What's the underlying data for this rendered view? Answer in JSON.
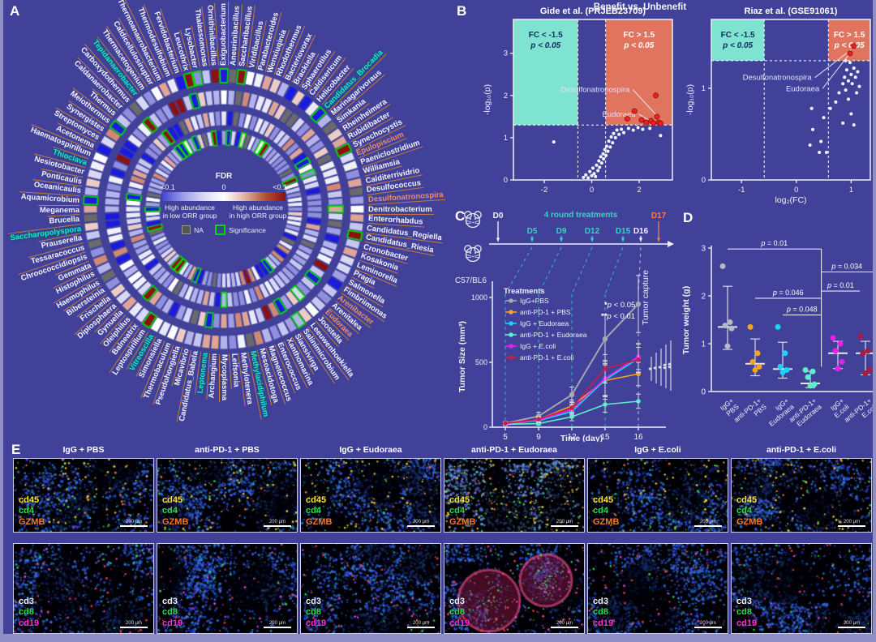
{
  "panels": {
    "a": "A",
    "b": "B",
    "c": "C",
    "d": "D",
    "e": "E"
  },
  "panelA": {
    "legend": {
      "title": "FDR",
      "tick_left": "<0.1",
      "tick_mid": "0",
      "tick_right": "<0.1",
      "left1": "High abundance",
      "left2": "in low ORR group",
      "right1": "High abundance",
      "right2": "in high ORR group",
      "na": "NA",
      "sig": "Significance"
    },
    "colors": {
      "highlight_cyan": "#1fe3ea",
      "highlight_orange": "#ef8d66",
      "leader": "#c47a3c",
      "sig_border": "#00dc00",
      "na_cell": "#6a6a6a"
    },
    "taxa": [
      [
        "Caldanaerobacter",
        ""
      ],
      [
        "Carboxydothermus",
        ""
      ],
      [
        "Tepidanaerobacter",
        "c"
      ],
      [
        "Thermacetogenium",
        ""
      ],
      [
        "Caldicellulosiruptor",
        ""
      ],
      [
        "Thermoanaerobacterium",
        ""
      ],
      [
        "Thermodesulfobium",
        ""
      ],
      [
        "Fervidobacterium",
        ""
      ],
      [
        "Leucothrix",
        ""
      ],
      [
        "Lysobacter",
        ""
      ],
      [
        "Thalassomonas",
        ""
      ],
      [
        "Ornithinibacillus",
        ""
      ],
      [
        "Exiguobacterium",
        ""
      ],
      [
        "Aneurinibacillus",
        ""
      ],
      [
        "Saccharibacillus",
        ""
      ],
      [
        "Viridibacillus",
        ""
      ],
      [
        "Parabacteroides",
        ""
      ],
      [
        "Wenxiuqinia",
        ""
      ],
      [
        "Rhodothermus",
        ""
      ],
      [
        "Bacteriovorax",
        ""
      ],
      [
        "Brackiella",
        ""
      ],
      [
        "Sphaerotilus",
        ""
      ],
      [
        "Caldisericum",
        ""
      ],
      [
        "Helicobacter",
        ""
      ],
      [
        "Candidatus_Brocadia",
        "c"
      ],
      [
        "Marinagarivoraus",
        ""
      ],
      [
        "Simkania",
        ""
      ],
      [
        "Rheinheimera",
        ""
      ],
      [
        "Rubidibacter",
        ""
      ],
      [
        "Synechocystis",
        ""
      ],
      [
        "Epulopiscium",
        "o"
      ],
      [
        "Paeniclostridium",
        ""
      ],
      [
        "Williamsia",
        ""
      ],
      [
        "Calditerrividrio",
        ""
      ],
      [
        "Desulfococcus",
        ""
      ],
      [
        "Desulfonatronospira",
        "o"
      ],
      [
        "Denitrobacterium",
        ""
      ],
      [
        "Enterorhabdus",
        ""
      ],
      [
        "Candidatus_Regiella",
        ""
      ],
      [
        "Candidatus_Riesia",
        ""
      ],
      [
        "Cronobacter",
        ""
      ],
      [
        "Kosakonia",
        ""
      ],
      [
        "Leminorella",
        ""
      ],
      [
        "Pragia",
        ""
      ],
      [
        "Salmonella",
        ""
      ],
      [
        "Fimbriimonas",
        ""
      ],
      [
        "Arenibacter",
        "o"
      ],
      [
        "Arenitalea",
        ""
      ],
      [
        "Eudoraea",
        "o"
      ],
      [
        "Joostella",
        ""
      ],
      [
        "Leeuwenhoekiella",
        ""
      ],
      [
        "Salinimicrobium",
        ""
      ],
      [
        "Siansivirga",
        ""
      ],
      [
        "Xanthomarina",
        ""
      ],
      [
        "Enterococcus",
        ""
      ],
      [
        "Magnetococcus",
        ""
      ],
      [
        "Mesoacidotoga",
        ""
      ],
      [
        "Methylacidiphilum",
        "c"
      ],
      [
        "Methylotenera",
        ""
      ],
      [
        "Leifsonia",
        ""
      ],
      [
        "Mycoplasma",
        ""
      ],
      [
        "Archangium",
        ""
      ],
      [
        "Leptonema",
        "c"
      ],
      [
        "Candidatus_Babela",
        ""
      ],
      [
        "Micavibrio",
        ""
      ],
      [
        "Pseudohongiella",
        ""
      ],
      [
        "Thermobaculum",
        ""
      ],
      [
        "Simonsiella",
        ""
      ],
      [
        "Vitreoscilla",
        "c"
      ],
      [
        "Leptospirillum",
        ""
      ],
      [
        "Balneatrix",
        ""
      ],
      [
        "Oleiphilus",
        ""
      ],
      [
        "Gynuella",
        ""
      ],
      [
        "Diplosphaera",
        ""
      ],
      [
        "Frischella",
        ""
      ],
      [
        "Bibersteinia",
        ""
      ],
      [
        "Haemophilus",
        ""
      ],
      [
        "Histophilus",
        ""
      ],
      [
        "Gemmata",
        ""
      ],
      [
        "Chroococcidiopsis",
        ""
      ],
      [
        "Tessaracoccus",
        ""
      ],
      [
        "Prauserella",
        ""
      ],
      [
        "Saccharopolyspora",
        "c"
      ],
      [
        "Brucella",
        ""
      ],
      [
        "Meganema",
        ""
      ],
      [
        "Aquamicrobium",
        ""
      ],
      [
        "Oceanicaulis",
        ""
      ],
      [
        "Ponticaulis",
        ""
      ],
      [
        "Nesiotobacter",
        ""
      ],
      [
        "Thioclava",
        "c"
      ],
      [
        "Haematospirillum",
        ""
      ],
      [
        "Acetonema",
        ""
      ],
      [
        "Streptomyces",
        ""
      ],
      [
        "Synergistes",
        ""
      ],
      [
        "Meiothermus",
        ""
      ],
      [
        "Thermus",
        ""
      ]
    ]
  },
  "panelB": {
    "header": "Benefit  vs.  Unbenefit"
  },
  "chart_data": [
    {
      "type": "scatter",
      "panel": "B-left",
      "title": "Gide et al. (PRJEB23709)",
      "xlabel": "",
      "ylabel": "-log₁₀(p)",
      "xlim": [
        -3.3,
        3.4
      ],
      "ylim": [
        0,
        3.8
      ],
      "xticks": [
        -2,
        0,
        2
      ],
      "yticks": [
        0,
        1,
        2,
        3
      ],
      "fc_line": 0.585,
      "p_line": 1.3,
      "region_left": [
        "FC < -1.5",
        "p < 0.05"
      ],
      "region_right": [
        "FC > 1.5",
        "p < 0.05"
      ],
      "points_ns": [
        [
          -1.6,
          0.9
        ],
        [
          -0.35,
          0.06
        ],
        [
          -0.25,
          0.12
        ],
        [
          -0.15,
          0.05
        ],
        [
          -0.08,
          0.2
        ],
        [
          0,
          0.1
        ],
        [
          0.05,
          0.28
        ],
        [
          0.1,
          0.15
        ],
        [
          0.16,
          0.08
        ],
        [
          0.2,
          0.35
        ],
        [
          0.26,
          0.22
        ],
        [
          0.3,
          0.45
        ],
        [
          0.33,
          0.3
        ],
        [
          0.38,
          0.55
        ],
        [
          0.42,
          0.4
        ],
        [
          0.48,
          0.62
        ],
        [
          0.5,
          0.5
        ],
        [
          0.55,
          0.72
        ],
        [
          0.6,
          0.58
        ],
        [
          0.63,
          0.8
        ],
        [
          0.68,
          0.68
        ],
        [
          0.72,
          0.92
        ],
        [
          0.78,
          0.78
        ],
        [
          0.82,
          1.02
        ],
        [
          0.88,
          0.88
        ],
        [
          0.92,
          1.1
        ],
        [
          1.0,
          1.0
        ],
        [
          1.06,
          1.18
        ],
        [
          1.15,
          1.08
        ],
        [
          1.25,
          1.2
        ],
        [
          1.35,
          1.12
        ],
        [
          1.55,
          1.22
        ],
        [
          1.75,
          1.18
        ],
        [
          1.95,
          1.24
        ],
        [
          2.15,
          1.2
        ],
        [
          2.45,
          1.22
        ],
        [
          2.9,
          1.05
        ]
      ],
      "points_sig": [
        [
          1.5,
          1.45
        ],
        [
          1.8,
          1.63
        ],
        [
          2.1,
          1.42
        ],
        [
          2.3,
          1.36
        ],
        [
          2.5,
          1.4
        ],
        [
          2.6,
          1.34
        ],
        [
          2.7,
          2.0
        ],
        [
          2.75,
          1.5
        ],
        [
          2.82,
          1.36
        ],
        [
          2.9,
          1.34
        ]
      ],
      "annotations": [
        {
          "label": "Desulfonatronospira",
          "lx": 1.6,
          "ly": 2.08,
          "px": 2.7,
          "py": 1.55
        },
        {
          "label": "Eudoraea",
          "lx": 1.85,
          "ly": 1.5,
          "px": 2.5,
          "py": 1.38
        }
      ]
    },
    {
      "type": "scatter",
      "panel": "B-right",
      "title": "Riaz et al. (GSE91061)",
      "xlabel": "log₂(FC)",
      "ylabel": "-log₁₀(p)",
      "xlim": [
        -1.55,
        1.35
      ],
      "ylim": [
        0,
        1.75
      ],
      "xticks": [
        -1,
        0,
        1
      ],
      "yticks": [
        0,
        1
      ],
      "fc_line": 0.585,
      "p_line": 1.3,
      "region_left": [
        "FC < -1.5",
        "p < 0.05"
      ],
      "region_right": [
        "FC > 1.5",
        "p < 0.05"
      ],
      "points_ns": [
        [
          0.25,
          0.38
        ],
        [
          0.3,
          0.55
        ],
        [
          0.42,
          0.3
        ],
        [
          0.45,
          0.42
        ],
        [
          0.5,
          0.68
        ],
        [
          0.55,
          0.3
        ],
        [
          0.62,
          0.78
        ],
        [
          0.72,
          0.85
        ],
        [
          0.78,
          0.95
        ],
        [
          0.85,
          1.05
        ],
        [
          0.85,
          0.62
        ],
        [
          0.88,
          1.12
        ],
        [
          0.9,
          0.98
        ],
        [
          0.9,
          1.3
        ],
        [
          0.92,
          1.2
        ],
        [
          0.95,
          1.08
        ],
        [
          0.95,
          0.88
        ],
        [
          0.98,
          1.28
        ],
        [
          1.0,
          1.15
        ],
        [
          1.0,
          0.72
        ],
        [
          1.02,
          1.05
        ],
        [
          1.05,
          1.22
        ],
        [
          1.05,
          0.6
        ],
        [
          1.08,
          1.12
        ],
        [
          1.1,
          0.95
        ],
        [
          1.12,
          1.18
        ],
        [
          1.15,
          1.02
        ],
        [
          0.28,
          0.78
        ]
      ],
      "points_sig": [
        [
          1.05,
          1.46
        ],
        [
          0.98,
          1.38
        ]
      ],
      "annotations": [
        {
          "label": "Desulfonatronospira",
          "lx": 0.28,
          "ly": 1.09,
          "px": 1.0,
          "py": 1.42
        },
        {
          "label": "Eudoraea",
          "lx": 0.42,
          "ly": 0.97,
          "px": 0.95,
          "py": 1.36
        }
      ]
    },
    {
      "type": "line",
      "panel": "C",
      "xlabel": "Time (day)",
      "ylabel": "Tumor Size (mm³)",
      "x": [
        5,
        9,
        12,
        15,
        16
      ],
      "ylim": [
        0,
        1100
      ],
      "yticks": [
        0,
        500,
        1000
      ],
      "legend_title": "Treatments",
      "sig_notes": [
        "*p < 0.05",
        "**p < 0.01"
      ],
      "capture_label": "Tumor capture",
      "sig_marks": [
        "*",
        "*",
        "*",
        "**",
        "**"
      ],
      "timeline": {
        "days": [
          {
            "label": "D0",
            "color": "#f2f2fa",
            "pos": "high"
          },
          {
            "label": "D5",
            "color": "#2ed9c3",
            "pos": "low"
          },
          {
            "label": "D9",
            "color": "#2ed9c3",
            "pos": "low"
          },
          {
            "label": "D12",
            "color": "#2ed9c3",
            "pos": "low"
          },
          {
            "label": "D15",
            "color": "#2ed9c3",
            "pos": "low"
          },
          {
            "label": "D16",
            "color": "#f2f2fa",
            "pos": "low"
          },
          {
            "label": "D17",
            "color": "#ef7d52",
            "pos": "high"
          }
        ],
        "rounds_label": "4 round treatments",
        "strain": "C57/BL6"
      },
      "series": [
        {
          "name": "IgG+PBS",
          "color": "#a9a9b4",
          "values": [
            30,
            85,
            250,
            680,
            950
          ],
          "err": [
            12,
            30,
            60,
            190,
            220
          ]
        },
        {
          "name": "anti-PD-1 + PBS",
          "color": "#f2a51e",
          "values": [
            28,
            60,
            165,
            360,
            410
          ],
          "err": [
            10,
            20,
            45,
            120,
            90
          ]
        },
        {
          "name": "IgG + Eudoraea",
          "color": "#17d4f7",
          "values": [
            25,
            50,
            120,
            365,
            530
          ],
          "err": [
            10,
            18,
            40,
            150,
            110
          ]
        },
        {
          "name": "anti-PD-1 + Eudoraea",
          "color": "#5bf0c5",
          "values": [
            22,
            28,
            80,
            175,
            200
          ],
          "err": [
            8,
            12,
            30,
            60,
            55
          ]
        },
        {
          "name": "IgG + E.coli",
          "color": "#ea1fea",
          "values": [
            28,
            55,
            135,
            375,
            545
          ],
          "err": [
            10,
            18,
            40,
            130,
            100
          ]
        },
        {
          "name": "anti-PD-1 + E.coli",
          "color": "#c22147",
          "values": [
            30,
            62,
            150,
            450,
            520
          ],
          "err": [
            10,
            20,
            45,
            110,
            95
          ]
        }
      ]
    },
    {
      "type": "scatter",
      "panel": "D",
      "ylabel": "Tumor weight (g)",
      "ylim": [
        0,
        3.2
      ],
      "yticks": [
        0,
        1,
        2,
        3
      ],
      "groups": [
        {
          "lines": [
            "IgG+",
            "PBS"
          ],
          "color": "#b9b9c4",
          "points": [
            2.62,
            1.45,
            1.38,
            1.32,
            0.95
          ],
          "mean": 1.35,
          "lo": 0.88,
          "hi": 2.2
        },
        {
          "lines": [
            "anti-PD-1+",
            "PBS"
          ],
          "color": "#f2a51e",
          "points": [
            1.35,
            0.8,
            0.62,
            0.52,
            0.45
          ],
          "mean": 0.58,
          "lo": 0.33,
          "hi": 1.1
        },
        {
          "lines": [
            "IgG+",
            "Eudoraea"
          ],
          "color": "#17d4f7",
          "points": [
            1.35,
            0.8,
            0.52,
            0.45,
            0.4
          ],
          "mean": 0.47,
          "lo": 0.28,
          "hi": 1.03
        },
        {
          "lines": [
            "anti-PD-1+",
            "Eudoraea"
          ],
          "color": "#5bf0c5",
          "points": [
            0.45,
            0.42,
            0.3,
            0.15,
            0.12
          ],
          "mean": 0.17,
          "lo": 0.08,
          "hi": 0.42
        },
        {
          "lines": [
            "IgG+",
            "E.coli"
          ],
          "color": "#ea1fea",
          "points": [
            1.12,
            1.0,
            0.85,
            0.62,
            0.48
          ],
          "mean": 0.8,
          "lo": 0.48,
          "hi": 1.05
        },
        {
          "lines": [
            "anti-PD-1+",
            "E.coli"
          ],
          "color": "#a81a40",
          "points": [
            1.15,
            0.85,
            0.8,
            0.45,
            0.38
          ],
          "mean": 0.8,
          "lo": 0.35,
          "hi": 1.05
        }
      ],
      "pvalues": [
        {
          "text": "p = 0.01",
          "g1": 1,
          "g2": 4.4,
          "v": 2.98
        },
        {
          "text": "p = 0.034",
          "g1": 4.4,
          "g2": 6.4,
          "v": 2.5
        },
        {
          "text": "p = 0.01",
          "g1": 4.4,
          "g2": 5.8,
          "v": 2.1
        },
        {
          "text": "p = 0.046",
          "g1": 2,
          "g2": 4.4,
          "v": 1.95
        },
        {
          "text": "p = 0.048",
          "g1": 3,
          "g2": 4.4,
          "v": 1.6
        }
      ],
      "pvalue_vertical": {
        "g": 4.4,
        "v1": 0.52,
        "v2": 2.98
      }
    }
  ],
  "panelE": {
    "columns": [
      "IgG + PBS",
      "anti-PD-1 + PBS",
      "IgG + Eudoraea",
      "anti-PD-1 + Eudoraea",
      "IgG + E.coli",
      "anti-PD-1 + E.coli"
    ],
    "row1_markers": [
      {
        "label": "cd45",
        "color": "#ffe32b"
      },
      {
        "label": "cd4",
        "color": "#2bdd4b"
      },
      {
        "label": "GZMB",
        "color": "#f07830"
      }
    ],
    "row2_markers": [
      {
        "label": "cd3",
        "color": "#f2f2f2"
      },
      {
        "label": "cd8",
        "color": "#2bdd4b"
      },
      {
        "label": "cd19",
        "color": "#ff2fd4"
      }
    ],
    "scale_label": "200 μm"
  }
}
